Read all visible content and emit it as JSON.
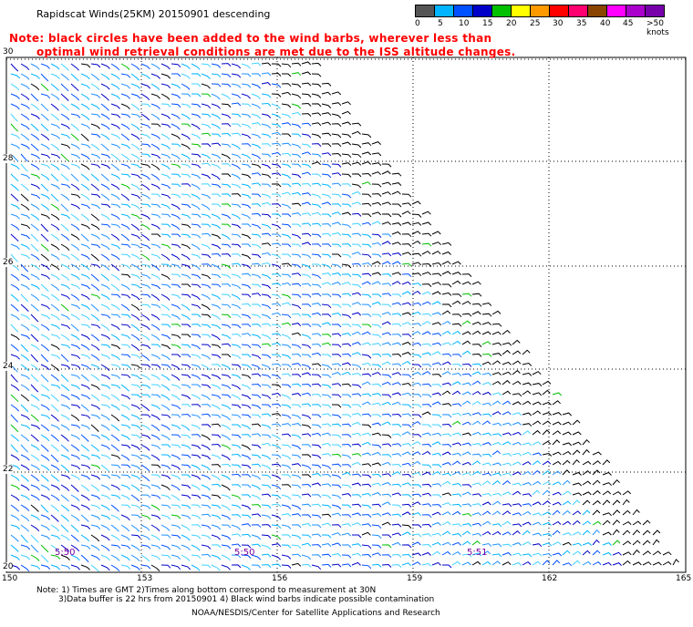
{
  "title": "Rapidscat Winds(25KM) 20150901 descending",
  "note_lines": [
    "Note: black circles have been added to the wind barbs, wherever less than",
    "optimal wind retrieval conditions are met due to the ISS altitude changes."
  ],
  "color_scale": {
    "colors": [
      "#555555",
      "#00b4ff",
      "#0050ff",
      "#0000c8",
      "#00c000",
      "#ffff00",
      "#ff9900",
      "#ff0000",
      "#ff0070",
      "#884400",
      "#ff00ff",
      "#aa00cc",
      "#7700aa"
    ],
    "labels": [
      "0",
      "5",
      "10",
      "15",
      "20",
      "25",
      "30",
      "35",
      "40",
      "45",
      ">50 knots"
    ]
  },
  "lat_labels": [
    "30",
    "28",
    "26",
    "24",
    "22",
    "20"
  ],
  "lon_labels": [
    "150",
    "153",
    "156",
    "159",
    "162",
    "165"
  ],
  "pass_times": [
    "5:50",
    "5:50",
    "5:51"
  ],
  "footer": {
    "line1": "Note: 1) Times are GMT 2)Times along bottom correspond to measurement at 30N",
    "line2": "3)Data buffer is 22 hrs from 20150901 4) Black wind barbs indicate possible contamination",
    "credit": "NOAA/NESDIS/Center for Satellite Applications and Research"
  }
}
